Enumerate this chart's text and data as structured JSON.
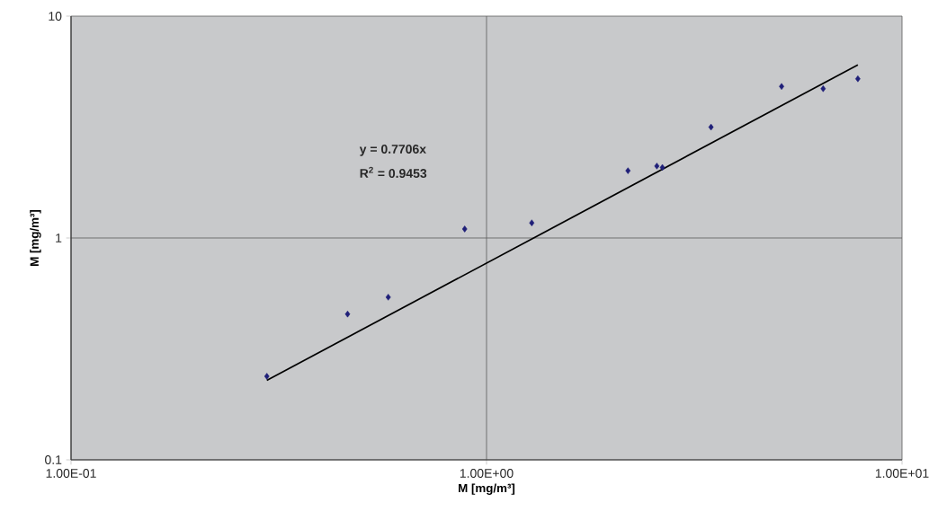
{
  "chart_data": {
    "type": "scatter",
    "xlabel": "M [mg/m³]",
    "ylabel": "M [mg/m³]",
    "annotations": [
      "y = 0.7706x",
      "R$^{2}$ = 0.9453"
    ],
    "log": "xy",
    "grid": true,
    "xlim": [
      0.1,
      10
    ],
    "ylim": [
      0.1,
      10
    ],
    "xticks": [
      {
        "value": 0.1,
        "label": "1.00E-01"
      },
      {
        "value": 1,
        "label": "1.00E+00"
      },
      {
        "value": 10,
        "label": "1.00E+01"
      }
    ],
    "yticks": [
      0.1,
      1,
      10
    ],
    "series": [
      {
        "marker": "diamond",
        "color": "#1f1f78",
        "x": [
          0.296,
          0.463,
          0.58,
          0.886,
          1.285,
          2.19,
          2.57,
          2.65,
          3.47,
          5.13,
          6.46,
          7.83
        ],
        "values": [
          0.238,
          0.454,
          0.541,
          1.098,
          1.17,
          2.01,
          2.11,
          2.08,
          3.16,
          4.82,
          4.71,
          5.22
        ]
      },
      {
        "type": "line",
        "marker": "none",
        "color": "#000000",
        "x": [
          0.296,
          7.83
        ],
        "values": [
          0.228,
          6.03
        ]
      }
    ]
  }
}
